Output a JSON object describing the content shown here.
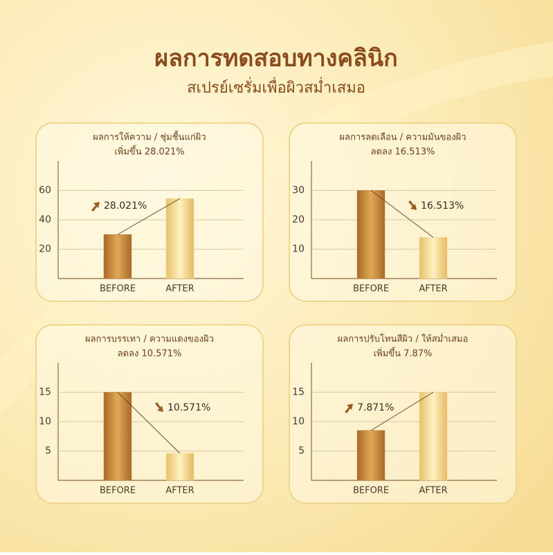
{
  "header": {
    "title": "ผลการทดสอบทางคลินิก",
    "subtitle": "สเปรย์เซรั่มเพื่อผิวสม่ำเสมอ"
  },
  "chart_data": [
    {
      "type": "bar",
      "title": "ผลการให้ความ / ชุ่มชื้นแก่ผิว",
      "subtitle": "เพิ่มขึ้น 28.021%",
      "annotation": "28.021%",
      "categories": [
        "BEFORE",
        "AFTER"
      ],
      "values": [
        30,
        54.5
      ],
      "colors": [
        "#c8893a",
        "#f2d98f"
      ],
      "ylim": [
        0,
        80
      ],
      "yticks": [
        20,
        40,
        60
      ],
      "grid": true
    },
    {
      "type": "bar",
      "title": "ผลการลดเลือน / ความมันของผิว",
      "subtitle": "ลดลง 16.513%",
      "annotation": "16.513%",
      "categories": [
        "BEFORE",
        "AFTER"
      ],
      "values": [
        30,
        14
      ],
      "colors": [
        "#c8893a",
        "#f2d98f"
      ],
      "ylim": [
        0,
        40
      ],
      "yticks": [
        10,
        20,
        30
      ],
      "grid": true
    },
    {
      "type": "bar",
      "title": "ผลการบรรเทา / ความแดงของผิว",
      "subtitle": "ลดลง 10.571%",
      "annotation": "10.571%",
      "categories": [
        "BEFORE",
        "AFTER"
      ],
      "values": [
        15,
        4.6
      ],
      "colors": [
        "#c8893a",
        "#f2d98f"
      ],
      "ylim": [
        0,
        20
      ],
      "yticks": [
        5,
        10,
        15
      ],
      "grid": true
    },
    {
      "type": "bar",
      "title": "ผลการปรับโทนสีผิว / ให้สม่ำเสมอ",
      "subtitle": "เพิ่มขึ้น 7.87%",
      "annotation": "7.871%",
      "categories": [
        "BEFORE",
        "AFTER"
      ],
      "values": [
        8.5,
        15
      ],
      "colors": [
        "#c8893a",
        "#f2d98f"
      ],
      "ylim": [
        0,
        20
      ],
      "yticks": [
        5,
        10,
        15
      ],
      "grid": true
    }
  ]
}
